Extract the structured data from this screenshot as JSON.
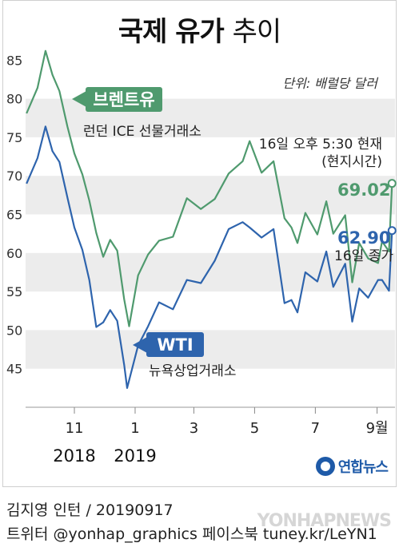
{
  "header": {
    "title_bold": "국제 유가",
    "title_light": "추이",
    "unit": "단위: 배럴당 달러"
  },
  "annotations": {
    "brent_label": "브렌트유",
    "brent_sub": "런던 ICE 선물거래소",
    "wti_label": "WTI",
    "wti_sub": "뉴욕상업거래소",
    "time_note_1": "16일 오후 5:30 현재",
    "time_note_2": "(현지시간)",
    "brent_value": "69.02",
    "wti_value": "62.90",
    "wti_value_note": "16일 종가"
  },
  "colors": {
    "brent": "#4f9a6e",
    "wti": "#2e64ad",
    "band": "#ececec"
  },
  "footer": {
    "line1": "김지영 인턴 / 20190917",
    "line2": "트위터 @yonhap_graphics  페이스북 tuney.kr/LeYN1",
    "logo": "연합뉴스",
    "watermark": "YONHAPNEWS"
  },
  "chart_data": {
    "type": "line",
    "title": "국제 유가 추이",
    "ylabel": "단위: 배럴당 달러",
    "ylim": [
      40,
      87
    ],
    "yticks": [
      45,
      50,
      55,
      60,
      65,
      70,
      75,
      80,
      85
    ],
    "xlim": [
      "2018-09-13",
      "2019-09-19"
    ],
    "xticks": [
      {
        "label": "11",
        "date": "2018-11-01"
      },
      {
        "label": "1",
        "date": "2019-01-01"
      },
      {
        "label": "3",
        "date": "2019-03-01"
      },
      {
        "label": "5",
        "date": "2019-05-01"
      },
      {
        "label": "7",
        "date": "2019-07-01"
      },
      {
        "label": "9월",
        "date": "2019-09-01"
      }
    ],
    "year_labels": [
      {
        "label": "2018",
        "date": "2018-11-01"
      },
      {
        "label": "2019",
        "date": "2019-01-01"
      }
    ],
    "grid": "alternating bands",
    "series": [
      {
        "name": "브렌트유",
        "x": [
          "2018-09-14",
          "2018-09-25",
          "2018-10-03",
          "2018-10-10",
          "2018-10-17",
          "2018-10-25",
          "2018-11-01",
          "2018-11-09",
          "2018-11-16",
          "2018-11-23",
          "2018-11-30",
          "2018-12-07",
          "2018-12-14",
          "2018-12-21",
          "2018-12-26",
          "2019-01-04",
          "2019-01-14",
          "2019-01-25",
          "2019-02-08",
          "2019-02-22",
          "2019-03-08",
          "2019-03-22",
          "2019-04-05",
          "2019-04-19",
          "2019-04-26",
          "2019-05-08",
          "2019-05-20",
          "2019-05-31",
          "2019-06-07",
          "2019-06-13",
          "2019-06-21",
          "2019-07-03",
          "2019-07-12",
          "2019-07-19",
          "2019-07-31",
          "2019-08-07",
          "2019-08-14",
          "2019-08-23",
          "2019-09-02",
          "2019-09-06",
          "2019-09-13",
          "2019-09-16"
        ],
        "values": [
          78.1,
          81.4,
          86.2,
          83.1,
          81.0,
          76.4,
          72.9,
          70.2,
          66.8,
          62.6,
          59.5,
          61.7,
          60.3,
          54.0,
          50.5,
          57.1,
          59.8,
          61.6,
          62.1,
          67.1,
          65.7,
          67.0,
          70.3,
          71.9,
          74.5,
          70.4,
          71.9,
          64.5,
          63.3,
          61.3,
          65.2,
          62.4,
          66.7,
          62.5,
          64.9,
          56.2,
          61.3,
          59.3,
          58.7,
          61.5,
          60.2,
          69.02
        ]
      },
      {
        "name": "WTI",
        "x": [
          "2018-09-14",
          "2018-09-25",
          "2018-10-03",
          "2018-10-10",
          "2018-10-17",
          "2018-10-25",
          "2018-11-01",
          "2018-11-09",
          "2018-11-16",
          "2018-11-23",
          "2018-11-30",
          "2018-12-07",
          "2018-12-14",
          "2018-12-21",
          "2018-12-24",
          "2019-01-04",
          "2019-01-14",
          "2019-01-25",
          "2019-02-08",
          "2019-02-22",
          "2019-03-08",
          "2019-03-22",
          "2019-04-05",
          "2019-04-19",
          "2019-04-26",
          "2019-05-08",
          "2019-05-20",
          "2019-05-31",
          "2019-06-07",
          "2019-06-13",
          "2019-06-21",
          "2019-07-03",
          "2019-07-12",
          "2019-07-19",
          "2019-07-31",
          "2019-08-07",
          "2019-08-14",
          "2019-08-23",
          "2019-09-02",
          "2019-09-06",
          "2019-09-13",
          "2019-09-16"
        ],
        "values": [
          69.0,
          72.3,
          76.4,
          73.2,
          71.8,
          67.2,
          63.3,
          60.4,
          56.5,
          50.4,
          51.0,
          52.6,
          51.2,
          45.5,
          42.5,
          48.0,
          50.5,
          53.6,
          52.7,
          56.5,
          56.1,
          59.0,
          63.1,
          64.0,
          63.3,
          62.0,
          63.1,
          53.5,
          53.9,
          52.3,
          57.5,
          56.3,
          60.2,
          55.6,
          58.6,
          51.1,
          55.4,
          54.2,
          56.5,
          56.5,
          55.1,
          62.9
        ]
      }
    ]
  }
}
